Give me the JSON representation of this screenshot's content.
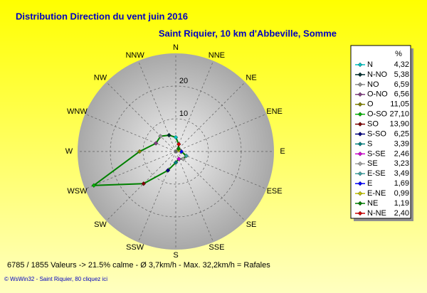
{
  "chart_data": {
    "type": "radar",
    "title": "Distribution Direction du vent   juin 2016",
    "subtitle": "Saint Riquier, 10 km d'Abbeville, Somme",
    "directions": [
      "N",
      "NNE",
      "NE",
      "ENE",
      "E",
      "ESE",
      "SE",
      "SSE",
      "S",
      "SSW",
      "SW",
      "WSW",
      "W",
      "WNW",
      "NW",
      "NNW"
    ],
    "legend_header": "%",
    "categories": [
      "N",
      "N-NO",
      "NO",
      "O-NO",
      "O",
      "O-SO",
      "SO",
      "S-SO",
      "S",
      "S-SE",
      "SE",
      "E-SE",
      "E",
      "E-NE",
      "NE",
      "N-NE"
    ],
    "values": [
      4.32,
      5.38,
      6.59,
      6.56,
      11.05,
      27.1,
      13.9,
      6.25,
      3.39,
      2.46,
      3.23,
      3.49,
      1.69,
      0.99,
      1.19,
      2.4
    ],
    "value_labels": [
      "4,32",
      "5,38",
      "6,59",
      "6,56",
      "11,05",
      "27,10",
      "13,90",
      "6,25",
      "3,39",
      "2,46",
      "3,23",
      "3,49",
      "1,69",
      "0,99",
      "1,19",
      "2,40"
    ],
    "colors": [
      "#00c0c0",
      "#003030",
      "#909090",
      "#804080",
      "#808000",
      "#00b000",
      "#800000",
      "#000080",
      "#008080",
      "#d000d0",
      "#a0a0a0",
      "#40a0a0",
      "#0000ff",
      "#c0c000",
      "#008000",
      "#d00000"
    ],
    "line_color": "#008000",
    "rlim": [
      0,
      30
    ],
    "rticks": [
      10,
      20
    ],
    "footer": "6785 / 1855 Valeurs  ->  21.5% calme   -   Ø 3,7km/h   -   Max. 32,2km/h = Rafales",
    "credit": "© WsWin32  -  Saint Riquier, 80 cliquez ici"
  }
}
